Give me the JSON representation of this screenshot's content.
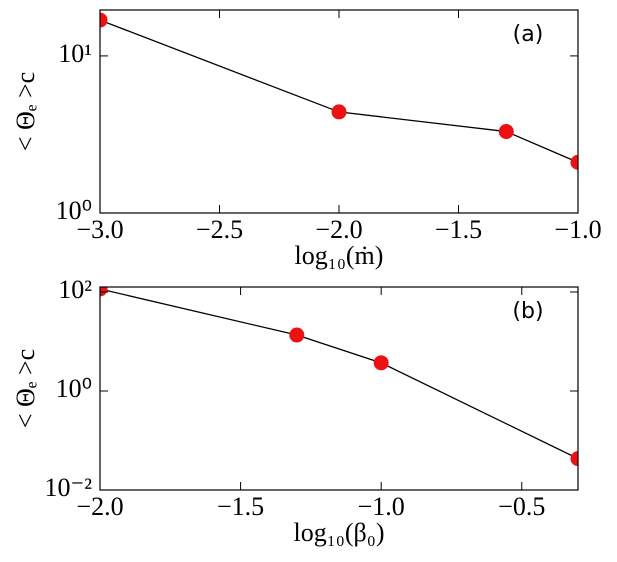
{
  "chart_data": [
    {
      "type": "line",
      "x": [
        -3,
        -2,
        -1.3,
        -1
      ],
      "series": [
        {
          "values": [
            16.9,
            4.4,
            3.3,
            2.1
          ],
          "color": "#ee1111"
        }
      ],
      "xlim": [
        -3,
        -1
      ],
      "xticks": [
        {
          "value": -3,
          "label": "−3.0"
        },
        {
          "value": -2.5,
          "label": "−2.5"
        },
        {
          "value": -2,
          "label": "−2.0"
        },
        {
          "value": -1.5,
          "label": "−1.5"
        },
        {
          "value": -1,
          "label": "−1.0"
        }
      ],
      "ylim": [
        1,
        19.6
      ],
      "yticks": [
        {
          "value": 1,
          "label": "10⁰"
        },
        {
          "value": 10,
          "label": "10¹"
        }
      ],
      "log_y": true,
      "x_label": "log₁₀(ṁ)",
      "y_label": "< Θₑ >c",
      "annotation": "(a)"
    },
    {
      "type": "line",
      "x": [
        -2,
        -1.3,
        -1,
        -0.3
      ],
      "series": [
        {
          "values": [
            115,
            13.5,
            3.7,
            0.043
          ],
          "color": "#ee1111"
        }
      ],
      "xlim": [
        -2,
        -0.3
      ],
      "xticks": [
        {
          "value": -2,
          "label": "−2.0"
        },
        {
          "value": -1.5,
          "label": "−1.5"
        },
        {
          "value": -1,
          "label": "−1.0"
        },
        {
          "value": -0.5,
          "label": "−0.5"
        }
      ],
      "ylim": [
        0.01,
        126
      ],
      "yticks": [
        {
          "value": 0.01,
          "label": "10⁻²"
        },
        {
          "value": 1,
          "label": "10⁰"
        },
        {
          "value": 100,
          "label": "10²"
        }
      ],
      "log_y": true,
      "x_label": "log₁₀(β₀)",
      "y_label": "< Θₑ >c",
      "annotation": "(b)"
    }
  ]
}
